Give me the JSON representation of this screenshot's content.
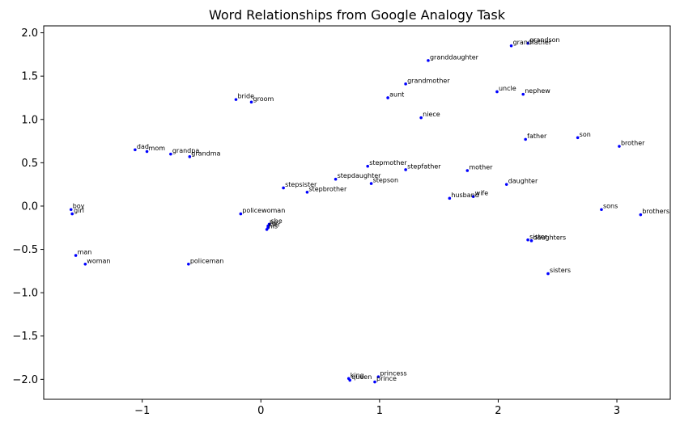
{
  "chart_data": {
    "type": "scatter",
    "title": "Word Relationships from Google Analogy Task",
    "xlabel": "",
    "ylabel": "",
    "xlim": [
      -1.83,
      3.45
    ],
    "ylim": [
      -2.23,
      2.08
    ],
    "x_ticks": [
      -1,
      0,
      1,
      2,
      3
    ],
    "x_tick_labels": [
      "−1",
      "0",
      "1",
      "2",
      "3"
    ],
    "y_ticks": [
      -2.0,
      -1.5,
      -1.0,
      -0.5,
      0.0,
      0.5,
      1.0,
      1.5,
      2.0
    ],
    "y_tick_labels": [
      "−2.0",
      "−1.5",
      "−1.0",
      "−0.5",
      "0.0",
      "0.5",
      "1.0",
      "1.5",
      "2.0"
    ],
    "grid": false,
    "legend": "none",
    "point_color": "#0000ff",
    "points": [
      {
        "label": "grandson",
        "x": 2.25,
        "y": 1.88
      },
      {
        "label": "grandfather",
        "x": 2.11,
        "y": 1.85
      },
      {
        "label": "granddaughter",
        "x": 1.41,
        "y": 1.68
      },
      {
        "label": "grandmother",
        "x": 1.22,
        "y": 1.41
      },
      {
        "label": "uncle",
        "x": 1.99,
        "y": 1.32
      },
      {
        "label": "nephew",
        "x": 2.21,
        "y": 1.29
      },
      {
        "label": "aunt",
        "x": 1.07,
        "y": 1.25
      },
      {
        "label": "bride",
        "x": -0.21,
        "y": 1.23
      },
      {
        "label": "groom",
        "x": -0.08,
        "y": 1.2
      },
      {
        "label": "niece",
        "x": 1.35,
        "y": 1.02
      },
      {
        "label": "father",
        "x": 2.23,
        "y": 0.77
      },
      {
        "label": "son",
        "x": 2.67,
        "y": 0.79
      },
      {
        "label": "brother",
        "x": 3.02,
        "y": 0.69
      },
      {
        "label": "dad",
        "x": -1.06,
        "y": 0.65
      },
      {
        "label": "mom",
        "x": -0.96,
        "y": 0.63
      },
      {
        "label": "grandpa",
        "x": -0.76,
        "y": 0.6
      },
      {
        "label": "grandma",
        "x": -0.6,
        "y": 0.57
      },
      {
        "label": "stepmother",
        "x": 0.9,
        "y": 0.46
      },
      {
        "label": "stepfather",
        "x": 1.22,
        "y": 0.42
      },
      {
        "label": "mother",
        "x": 1.74,
        "y": 0.41
      },
      {
        "label": "stepdaughter",
        "x": 0.63,
        "y": 0.31
      },
      {
        "label": "stepson",
        "x": 0.93,
        "y": 0.26
      },
      {
        "label": "daughter",
        "x": 2.07,
        "y": 0.25
      },
      {
        "label": "stepsister",
        "x": 0.19,
        "y": 0.21
      },
      {
        "label": "stepbrother",
        "x": 0.39,
        "y": 0.16
      },
      {
        "label": "husband",
        "x": 1.59,
        "y": 0.09
      },
      {
        "label": "wife",
        "x": 1.79,
        "y": 0.11
      },
      {
        "label": "sons",
        "x": 2.87,
        "y": -0.04
      },
      {
        "label": "brothers",
        "x": 3.2,
        "y": -0.1
      },
      {
        "label": "boy",
        "x": -1.6,
        "y": -0.04
      },
      {
        "label": "girl",
        "x": -1.59,
        "y": -0.09
      },
      {
        "label": "policewoman",
        "x": -0.17,
        "y": -0.09
      },
      {
        "label": "she",
        "x": 0.07,
        "y": -0.21
      },
      {
        "label": "he",
        "x": 0.06,
        "y": -0.23
      },
      {
        "label": "her",
        "x": 0.06,
        "y": -0.25
      },
      {
        "label": "his",
        "x": 0.05,
        "y": -0.27
      },
      {
        "label": "sisters",
        "x": 2.42,
        "y": -0.78
      },
      {
        "label": "sister",
        "x": 2.25,
        "y": -0.39
      },
      {
        "label": "daughters",
        "x": 2.28,
        "y": -0.4
      },
      {
        "label": "man",
        "x": -1.56,
        "y": -0.57
      },
      {
        "label": "woman",
        "x": -1.48,
        "y": -0.67
      },
      {
        "label": "policeman",
        "x": -0.61,
        "y": -0.67
      },
      {
        "label": "king",
        "x": 0.74,
        "y": -1.99
      },
      {
        "label": "queen",
        "x": 0.75,
        "y": -2.01
      },
      {
        "label": "princess",
        "x": 0.99,
        "y": -1.97
      },
      {
        "label": "prince",
        "x": 0.96,
        "y": -2.03
      }
    ]
  }
}
